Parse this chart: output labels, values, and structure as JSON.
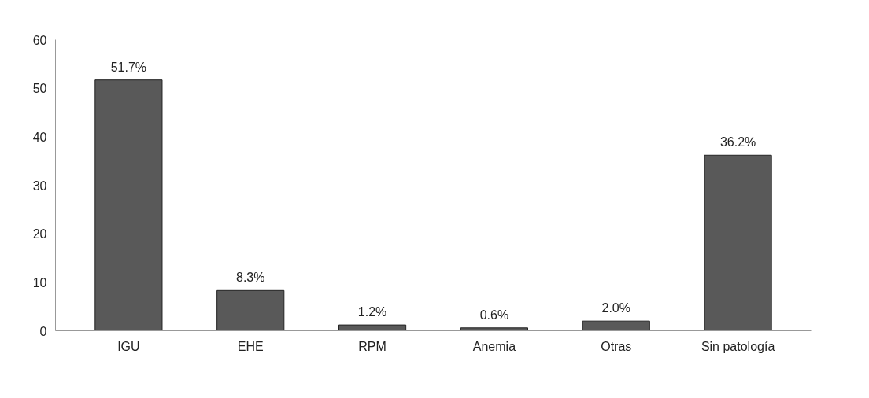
{
  "chart_data": {
    "type": "bar",
    "categories": [
      "IGU",
      "EHE",
      "RPM",
      "Anemia",
      "Otras",
      "Sin patología"
    ],
    "values": [
      51.7,
      8.3,
      1.2,
      0.6,
      2.0,
      36.2
    ],
    "value_labels": [
      "51.7%",
      "8.3%",
      "1.2%",
      "0.6%",
      "2.0%",
      "36.2%"
    ],
    "color": "#595959",
    "ylim": [
      0,
      60
    ],
    "yticks": [
      0,
      10,
      20,
      30,
      40,
      50,
      60
    ],
    "grid": false
  }
}
